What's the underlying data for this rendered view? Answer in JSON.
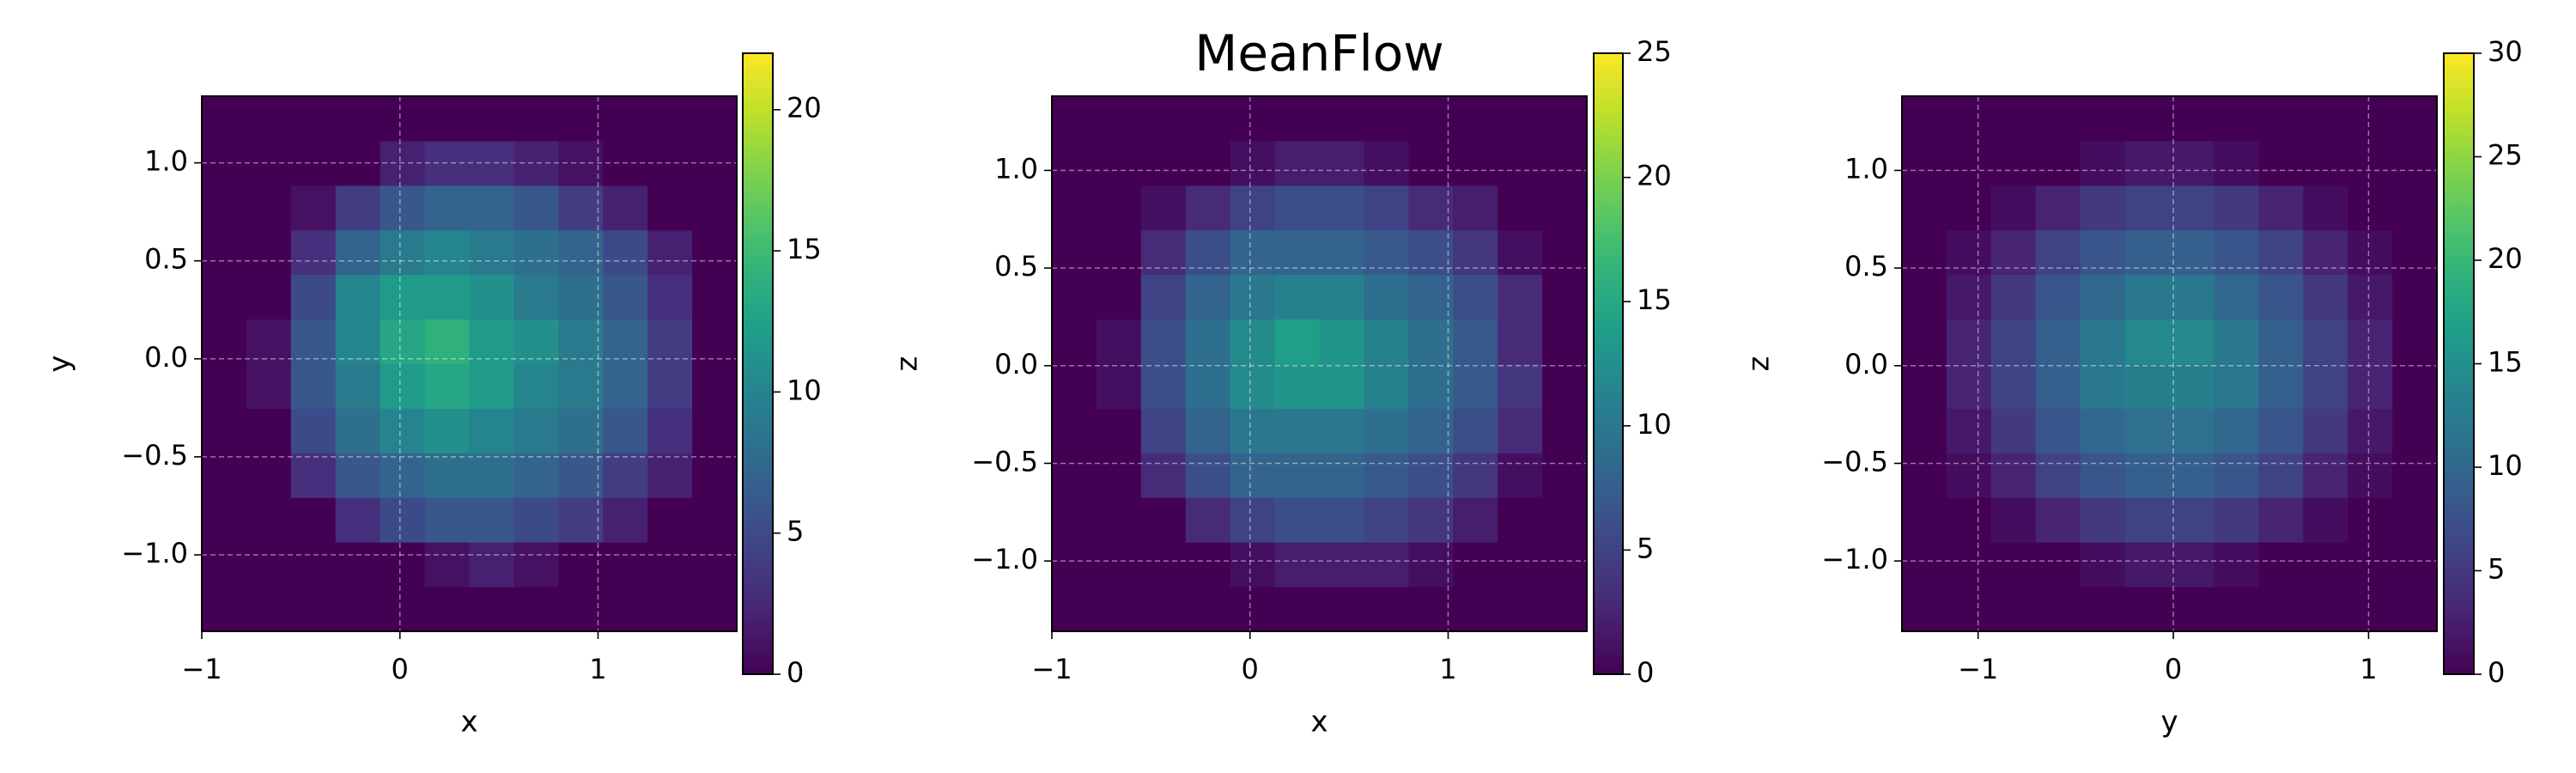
{
  "chart_data": [
    {
      "type": "hist2d",
      "xlabel": "x",
      "ylabel": "y",
      "cmap": "viridis",
      "grid": true,
      "xlim": [
        -1,
        1.7
      ],
      "ylim": [
        -1.39,
        1.34
      ],
      "xticks": [
        {
          "value": -1,
          "label": "−1"
        },
        0,
        1
      ],
      "yticks": [
        {
          "value": -1,
          "label": "−1.0"
        },
        {
          "value": -0.5,
          "label": "−0.5"
        },
        {
          "value": 0,
          "label": "0.0"
        },
        0.5,
        {
          "value": 1,
          "label": "1.0"
        }
      ],
      "clim": [
        0,
        22
      ],
      "cticks": [
        0,
        5,
        10,
        15,
        20
      ],
      "xbins": [
        -1,
        -0.775,
        -0.55,
        -0.325,
        -0.1,
        0.125,
        0.35,
        0.575,
        0.8,
        1.025,
        1.25,
        1.475,
        1.7
      ],
      "ybins": [
        -1.39,
        -1.1625,
        -0.935,
        -0.7075,
        -0.48,
        -0.2525,
        -0.025,
        0.2025,
        0.43,
        0.6575,
        0.885,
        1.1125,
        1.34
      ],
      "counts": [
        [
          0,
          0,
          0,
          0,
          0,
          0,
          0,
          0,
          0,
          0,
          0,
          0
        ],
        [
          0,
          0,
          0,
          0,
          0,
          1,
          2,
          1,
          0,
          0,
          0,
          0
        ],
        [
          0,
          0,
          0,
          3,
          5,
          6,
          6,
          5,
          4,
          2,
          0,
          0
        ],
        [
          0,
          0,
          3,
          6,
          7,
          8,
          8,
          7,
          6,
          4,
          2,
          0
        ],
        [
          0,
          0,
          5,
          8,
          10,
          11,
          10,
          9,
          8,
          6,
          3,
          0
        ],
        [
          0,
          1,
          6,
          9,
          12,
          13,
          12,
          10,
          9,
          7,
          4,
          0
        ],
        [
          0,
          1,
          6,
          10,
          13,
          14,
          12,
          11,
          9,
          7,
          4,
          0
        ],
        [
          0,
          0,
          5,
          10,
          12,
          12,
          11,
          9,
          8,
          6,
          3,
          0
        ],
        [
          0,
          0,
          3,
          7,
          9,
          10,
          9,
          8,
          7,
          5,
          2,
          0
        ],
        [
          0,
          0,
          1,
          4,
          6,
          7,
          7,
          6,
          4,
          2,
          0,
          0
        ],
        [
          0,
          0,
          0,
          0,
          2,
          3,
          3,
          2,
          1,
          0,
          0,
          0
        ],
        [
          0,
          0,
          0,
          0,
          0,
          0,
          0,
          0,
          0,
          0,
          0,
          0
        ]
      ]
    },
    {
      "type": "hist2d",
      "title": "MeanFlow",
      "xlabel": "x",
      "ylabel": "z",
      "cmap": "viridis",
      "grid": true,
      "xlim": [
        -1,
        1.7
      ],
      "ylim": [
        -1.36,
        1.38
      ],
      "xticks": [
        {
          "value": -1,
          "label": "−1"
        },
        0,
        1
      ],
      "yticks": [
        {
          "value": -1,
          "label": "−1.0"
        },
        {
          "value": -0.5,
          "label": "−0.5"
        },
        {
          "value": 0,
          "label": "0.0"
        },
        0.5,
        {
          "value": 1,
          "label": "1.0"
        }
      ],
      "clim": [
        0,
        25
      ],
      "cticks": [
        0,
        5,
        10,
        15,
        20,
        25
      ],
      "xbins": [
        -1,
        -0.775,
        -0.55,
        -0.325,
        -0.1,
        0.125,
        0.35,
        0.575,
        0.8,
        1.025,
        1.25,
        1.475,
        1.7
      ],
      "ybins": [
        -1.36,
        -1.1317,
        -0.9033,
        -0.675,
        -0.4467,
        -0.2183,
        0.01,
        0.2383,
        0.4667,
        0.695,
        0.9233,
        1.1517,
        1.38
      ],
      "counts": [
        [
          0,
          0,
          0,
          0,
          0,
          0,
          0,
          0,
          0,
          0,
          0,
          0
        ],
        [
          0,
          0,
          0,
          0,
          1,
          2,
          2,
          2,
          1,
          0,
          0,
          0
        ],
        [
          0,
          0,
          0,
          3,
          5,
          6,
          6,
          5,
          4,
          2,
          0,
          0
        ],
        [
          0,
          0,
          3,
          6,
          8,
          8,
          8,
          7,
          6,
          4,
          1,
          0
        ],
        [
          0,
          0,
          5,
          8,
          10,
          10,
          10,
          9,
          8,
          6,
          3,
          0
        ],
        [
          0,
          1,
          6,
          9,
          12,
          13,
          13,
          11,
          9,
          7,
          4,
          0
        ],
        [
          0,
          1,
          6,
          9,
          12,
          14,
          13,
          11,
          9,
          7,
          3,
          0
        ],
        [
          0,
          0,
          5,
          8,
          10,
          11,
          11,
          9,
          8,
          6,
          3,
          0
        ],
        [
          0,
          0,
          3,
          6,
          8,
          8,
          8,
          7,
          6,
          4,
          1,
          0
        ],
        [
          0,
          0,
          1,
          3,
          5,
          6,
          6,
          5,
          3,
          2,
          0,
          0
        ],
        [
          0,
          0,
          0,
          0,
          1,
          2,
          2,
          1,
          0,
          0,
          0,
          0
        ],
        [
          0,
          0,
          0,
          0,
          0,
          0,
          0,
          0,
          0,
          0,
          0,
          0
        ]
      ]
    },
    {
      "type": "hist2d",
      "xlabel": "y",
      "ylabel": "z",
      "cmap": "viridis",
      "grid": true,
      "xlim": [
        -1.39,
        1.35
      ],
      "ylim": [
        -1.36,
        1.38
      ],
      "xticks": [
        {
          "value": -1,
          "label": "−1"
        },
        0,
        1
      ],
      "yticks": [
        {
          "value": -1,
          "label": "−1.0"
        },
        {
          "value": -0.5,
          "label": "−0.5"
        },
        {
          "value": 0,
          "label": "0.0"
        },
        0.5,
        {
          "value": 1,
          "label": "1.0"
        }
      ],
      "clim": [
        0,
        30
      ],
      "cticks": [
        0,
        5,
        10,
        15,
        20,
        25,
        30
      ],
      "xbins": [
        -1.39,
        -1.1617,
        -0.9333,
        -0.705,
        -0.4767,
        -0.2483,
        -0.02,
        0.2083,
        0.4367,
        0.665,
        0.8933,
        1.1217,
        1.35
      ],
      "ybins": [
        -1.36,
        -1.1317,
        -0.9033,
        -0.675,
        -0.4467,
        -0.2183,
        0.01,
        0.2383,
        0.4667,
        0.695,
        0.9233,
        1.1517,
        1.38
      ],
      "counts": [
        [
          0,
          0,
          0,
          0,
          0,
          0,
          0,
          0,
          0,
          0,
          0,
          0
        ],
        [
          0,
          0,
          0,
          0,
          1,
          2,
          2,
          1,
          0,
          0,
          0,
          0
        ],
        [
          0,
          0,
          1,
          3,
          5,
          6,
          6,
          5,
          3,
          1,
          0,
          0
        ],
        [
          0,
          1,
          3,
          6,
          8,
          9,
          9,
          8,
          6,
          3,
          1,
          0
        ],
        [
          0,
          2,
          5,
          8,
          10,
          11,
          11,
          10,
          8,
          5,
          2,
          0
        ],
        [
          0,
          3,
          6,
          9,
          12,
          13,
          13,
          12,
          9,
          6,
          3,
          0
        ],
        [
          0,
          3,
          6,
          9,
          12,
          14,
          14,
          12,
          9,
          6,
          3,
          0
        ],
        [
          0,
          2,
          5,
          8,
          10,
          12,
          12,
          10,
          8,
          5,
          2,
          0
        ],
        [
          0,
          1,
          3,
          6,
          8,
          9,
          9,
          8,
          6,
          3,
          1,
          0
        ],
        [
          0,
          0,
          1,
          3,
          5,
          6,
          6,
          5,
          3,
          1,
          0,
          0
        ],
        [
          0,
          0,
          0,
          0,
          1,
          2,
          2,
          1,
          0,
          0,
          0,
          0
        ],
        [
          0,
          0,
          0,
          0,
          0,
          0,
          0,
          0,
          0,
          0,
          0,
          0
        ]
      ]
    }
  ]
}
